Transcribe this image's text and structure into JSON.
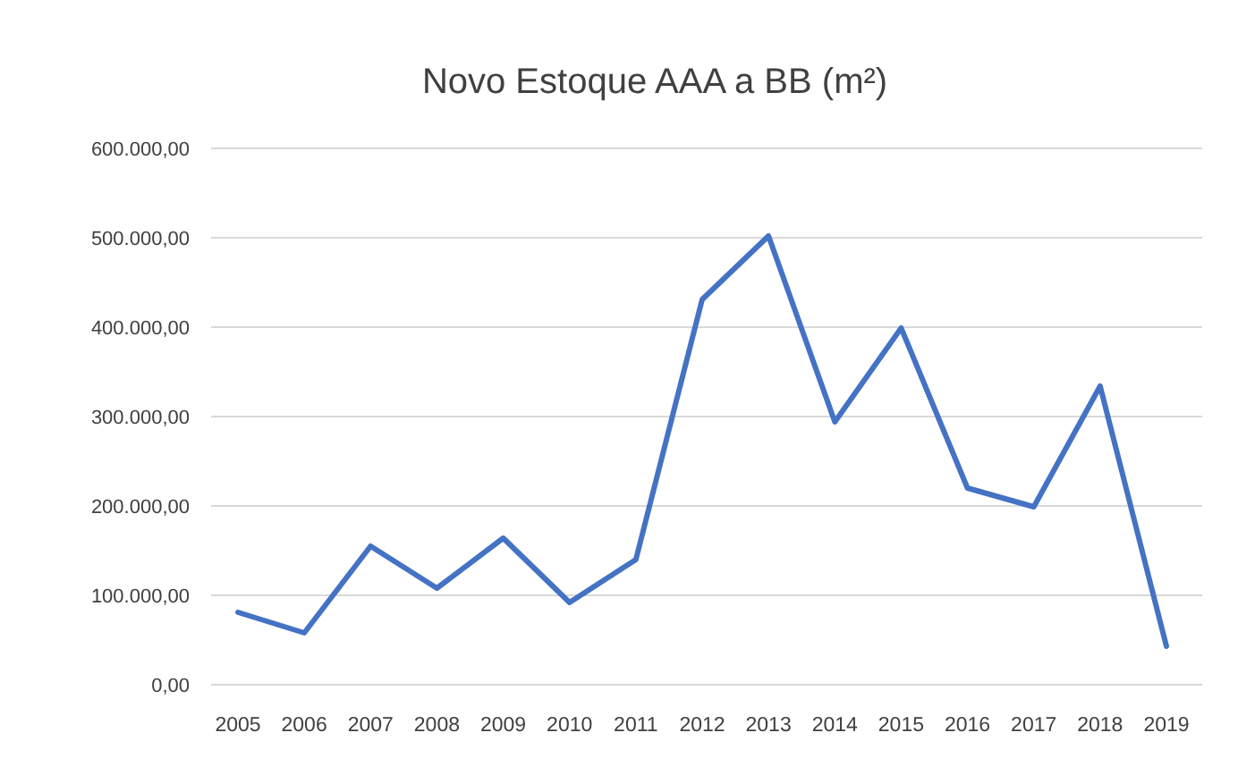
{
  "chart_data": {
    "type": "line",
    "title": "Novo Estoque AAA a BB (m²)",
    "categories": [
      "2005",
      "2006",
      "2007",
      "2008",
      "2009",
      "2010",
      "2011",
      "2012",
      "2013",
      "2014",
      "2015",
      "2016",
      "2017",
      "2018",
      "2019"
    ],
    "series": [
      {
        "color": "#4472c4",
        "values": [
          81000,
          58000,
          155000,
          108000,
          164000,
          92000,
          140000,
          431000,
          502000,
          294000,
          399000,
          220000,
          199000,
          334000,
          43000
        ]
      }
    ],
    "ylim": [
      0,
      600000
    ],
    "yticks": [
      {
        "value": 0,
        "label": "0,00"
      },
      {
        "value": 100000,
        "label": "100.000,00"
      },
      {
        "value": 200000,
        "label": "200.000,00"
      },
      {
        "value": 300000,
        "label": "300.000,00"
      },
      {
        "value": 400000,
        "label": "400.000,00"
      },
      {
        "value": 500000,
        "label": "500.000,00"
      },
      {
        "value": 600000,
        "label": "600.000,00"
      }
    ],
    "grid": "y",
    "marker": "none",
    "line_style": "solid"
  }
}
